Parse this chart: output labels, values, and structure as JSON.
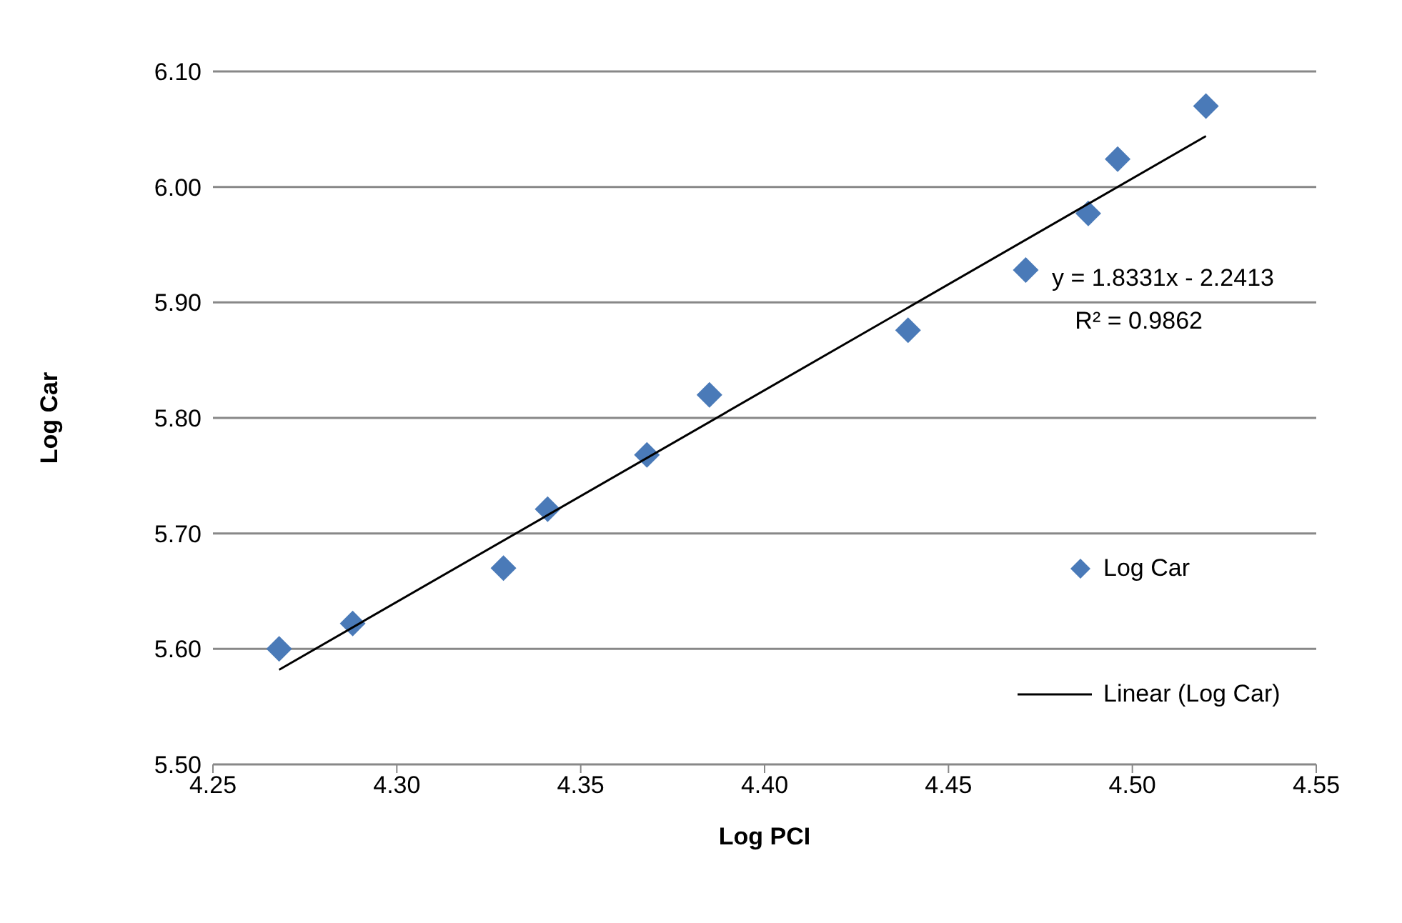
{
  "chart_data": {
    "type": "scatter",
    "xlabel": "Log PCI",
    "ylabel": "Log Car",
    "x": [
      4.268,
      4.288,
      4.329,
      4.341,
      4.368,
      4.385,
      4.439,
      4.471,
      4.488,
      4.496,
      4.52
    ],
    "series": [
      {
        "name": "Log Car",
        "color": "#4a7ab8",
        "marker": "diamond",
        "values": [
          5.6,
          5.622,
          5.67,
          5.721,
          5.768,
          5.82,
          5.876,
          5.928,
          5.977,
          6.024,
          6.07
        ]
      },
      {
        "name": "Linear (Log Car)",
        "type": "line",
        "color": "#000000",
        "x": [
          4.268,
          4.52
        ],
        "values": [
          5.582,
          6.044
        ]
      }
    ],
    "xlim": [
      4.25,
      4.55
    ],
    "xticks": [
      {
        "value": 4.25,
        "label": "4.25"
      },
      {
        "value": 4.3,
        "label": "4.30"
      },
      {
        "value": 4.35,
        "label": "4.35"
      },
      {
        "value": 4.4,
        "label": "4.40"
      },
      {
        "value": 4.45,
        "label": "4.45"
      },
      {
        "value": 4.5,
        "label": "4.50"
      },
      {
        "value": 4.55,
        "label": "4.55"
      }
    ],
    "ylim": [
      5.5,
      6.1
    ],
    "yticks": [
      {
        "value": 5.5,
        "label": "5.50"
      },
      {
        "value": 5.6,
        "label": "5.60"
      },
      {
        "value": 5.7,
        "label": "5.70"
      },
      {
        "value": 5.8,
        "label": "5.80"
      },
      {
        "value": 5.9,
        "label": "5.90"
      },
      {
        "value": 6.0,
        "label": "6.00"
      },
      {
        "value": 6.1,
        "label": "6.10"
      }
    ],
    "annotations": [
      "y = 1.8331x - 2.2413",
      "R² = 0.9862"
    ],
    "grid": "y",
    "legend": "right"
  }
}
